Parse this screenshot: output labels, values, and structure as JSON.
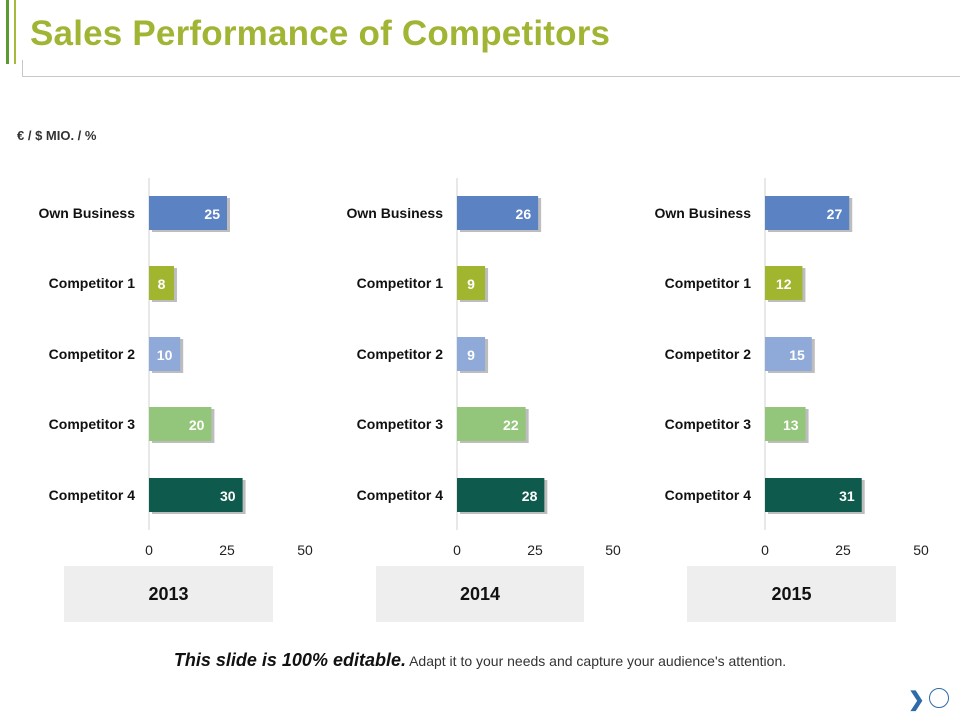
{
  "slide": {
    "title": "Sales Performance of Competitors",
    "unit_label": "€ / $ MIO. / %",
    "footer_strong": "This slide is 100% editable.",
    "footer_text": " Adapt it to your needs and capture your audience's attention.",
    "nav_arrow_icon": "chevron-right-icon",
    "nav_circle_icon": "circle-icon"
  },
  "colors": {
    "title": "#a2b434",
    "own_business": "#5b83c4",
    "competitor_1": "#a1b52e",
    "competitor_2": "#8fa9d9",
    "competitor_3": "#93c57a",
    "competitor_4": "#0e5a4d",
    "year_box": "#eeeeee"
  },
  "years": [
    "2013",
    "2014",
    "2015"
  ],
  "chart_data": [
    {
      "type": "bar",
      "orientation": "horizontal",
      "title": "2013",
      "categories": [
        "Own Business",
        "Competitor 1",
        "Competitor 2",
        "Competitor 3",
        "Competitor 4"
      ],
      "values": [
        25,
        8,
        10,
        20,
        30
      ],
      "xlim": [
        0,
        50
      ],
      "xticks": [
        0,
        25,
        50
      ],
      "grid": false
    },
    {
      "type": "bar",
      "orientation": "horizontal",
      "title": "2014",
      "categories": [
        "Own Business",
        "Competitor 1",
        "Competitor 2",
        "Competitor 3",
        "Competitor 4"
      ],
      "values": [
        26,
        9,
        9,
        22,
        28
      ],
      "xlim": [
        0,
        50
      ],
      "xticks": [
        0,
        25,
        50
      ],
      "grid": false
    },
    {
      "type": "bar",
      "orientation": "horizontal",
      "title": "2015",
      "categories": [
        "Own Business",
        "Competitor 1",
        "Competitor 2",
        "Competitor 3",
        "Competitor 4"
      ],
      "values": [
        27,
        12,
        15,
        13,
        31
      ],
      "xlim": [
        0,
        50
      ],
      "xticks": [
        0,
        25,
        50
      ],
      "grid": false
    }
  ]
}
